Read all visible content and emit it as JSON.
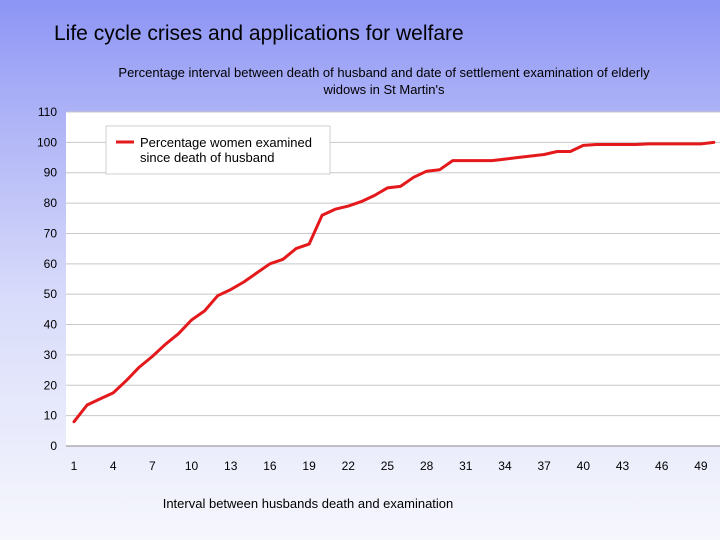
{
  "slide_title": "Life cycle crises and applications for welfare",
  "chart_data": {
    "type": "line",
    "title_lines": [
      "Percentage interval between death of husband and date of settlement examination of elderly",
      "widows in St Martin's"
    ],
    "xlabel": "Interval between husbands death and examination",
    "ylabel": "",
    "ylim": [
      0,
      110
    ],
    "yticks": [
      0,
      10,
      20,
      30,
      40,
      50,
      60,
      70,
      80,
      90,
      100,
      110
    ],
    "xticks": [
      1,
      4,
      7,
      10,
      13,
      16,
      19,
      22,
      25,
      28,
      31,
      34,
      37,
      40,
      43,
      46,
      49
    ],
    "grid": true,
    "legend_position": "top-left",
    "series": [
      {
        "name_lines": [
          "Percentage women examined",
          "since death of husband"
        ],
        "color": "#e3191c",
        "x": [
          1,
          2,
          3,
          4,
          5,
          6,
          7,
          8,
          9,
          10,
          11,
          12,
          13,
          14,
          15,
          16,
          17,
          18,
          19,
          20,
          21,
          22,
          23,
          24,
          25,
          26,
          27,
          28,
          29,
          30,
          31,
          32,
          33,
          34,
          35,
          36,
          37,
          38,
          39,
          40,
          41,
          42,
          43,
          44,
          45,
          46,
          47,
          48,
          49,
          50
        ],
        "values": [
          8,
          13.5,
          15.5,
          17.5,
          21.5,
          26,
          29.5,
          33.5,
          37,
          41.5,
          44.5,
          49.5,
          51.5,
          54,
          57,
          60,
          61.5,
          65,
          66.5,
          76,
          78,
          79,
          80.5,
          82.5,
          85,
          85.5,
          88.5,
          90.5,
          91,
          94,
          94,
          94,
          94,
          94.5,
          95,
          95.5,
          96,
          97,
          97,
          99,
          99.3,
          99.3,
          99.3,
          99.3,
          99.5,
          99.5,
          99.5,
          99.5,
          99.5,
          100
        ]
      }
    ]
  }
}
